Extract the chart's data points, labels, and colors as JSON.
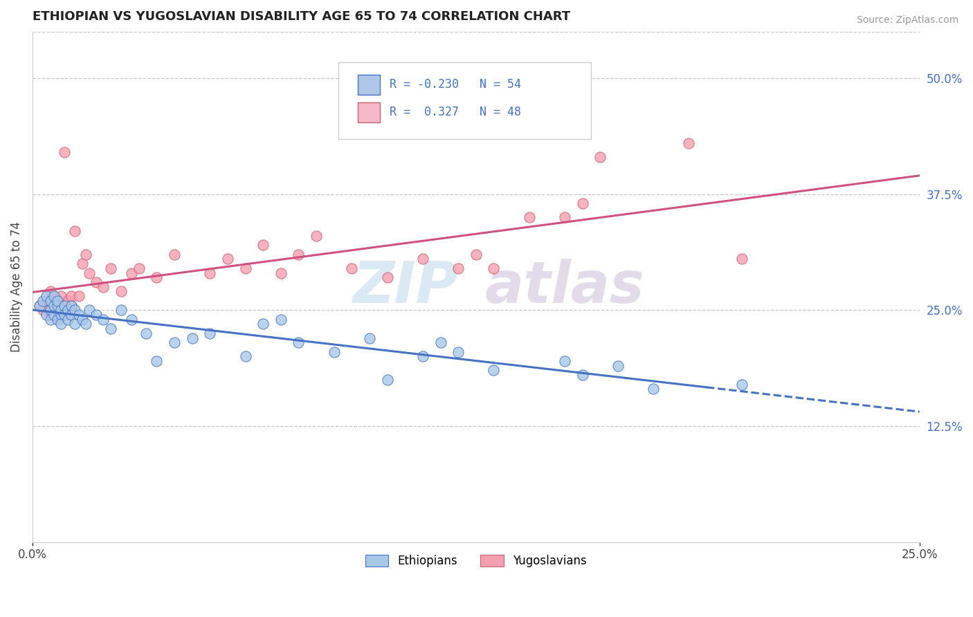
{
  "title": "ETHIOPIAN VS YUGOSLAVIAN DISABILITY AGE 65 TO 74 CORRELATION CHART",
  "source": "Source: ZipAtlas.com",
  "ylabel": "Disability Age 65 to 74",
  "xlim": [
    0.0,
    0.25
  ],
  "ylim": [
    0.0,
    0.55
  ],
  "yticks_right": [
    0.125,
    0.25,
    0.375,
    0.5
  ],
  "yticks_right_labels": [
    "12.5%",
    "25.0%",
    "37.5%",
    "50.0%"
  ],
  "blue_color": "#a8c8e8",
  "pink_color": "#f4a0b0",
  "blue_edge": "#4472c4",
  "pink_edge": "#d06070",
  "trend_blue": "#4472c4",
  "trend_pink": "#d05080",
  "R_blue": -0.23,
  "N_blue": 54,
  "R_pink": 0.327,
  "N_pink": 48,
  "background_color": "#ffffff",
  "grid_color": "#c8c8c8",
  "ethiopians_x": [
    0.002,
    0.003,
    0.004,
    0.004,
    0.005,
    0.005,
    0.005,
    0.006,
    0.006,
    0.006,
    0.007,
    0.007,
    0.007,
    0.008,
    0.008,
    0.008,
    0.009,
    0.009,
    0.01,
    0.01,
    0.011,
    0.011,
    0.012,
    0.012,
    0.013,
    0.014,
    0.015,
    0.016,
    0.018,
    0.02,
    0.022,
    0.025,
    0.028,
    0.032,
    0.035,
    0.04,
    0.045,
    0.05,
    0.06,
    0.065,
    0.07,
    0.075,
    0.085,
    0.095,
    0.1,
    0.11,
    0.115,
    0.12,
    0.13,
    0.15,
    0.155,
    0.165,
    0.175,
    0.2
  ],
  "ethiopians_y": [
    0.255,
    0.26,
    0.245,
    0.265,
    0.25,
    0.24,
    0.26,
    0.245,
    0.255,
    0.265,
    0.24,
    0.255,
    0.26,
    0.245,
    0.25,
    0.235,
    0.255,
    0.245,
    0.25,
    0.24,
    0.255,
    0.245,
    0.235,
    0.25,
    0.245,
    0.24,
    0.235,
    0.25,
    0.245,
    0.24,
    0.23,
    0.25,
    0.24,
    0.225,
    0.195,
    0.215,
    0.22,
    0.225,
    0.2,
    0.235,
    0.24,
    0.215,
    0.205,
    0.22,
    0.175,
    0.2,
    0.215,
    0.205,
    0.185,
    0.195,
    0.18,
    0.19,
    0.165,
    0.17
  ],
  "yugoslavians_x": [
    0.002,
    0.003,
    0.004,
    0.005,
    0.005,
    0.006,
    0.007,
    0.007,
    0.008,
    0.008,
    0.009,
    0.009,
    0.01,
    0.01,
    0.011,
    0.011,
    0.012,
    0.013,
    0.014,
    0.015,
    0.016,
    0.018,
    0.02,
    0.022,
    0.025,
    0.028,
    0.03,
    0.035,
    0.04,
    0.05,
    0.055,
    0.06,
    0.065,
    0.07,
    0.075,
    0.08,
    0.09,
    0.1,
    0.11,
    0.12,
    0.125,
    0.13,
    0.14,
    0.15,
    0.155,
    0.16,
    0.185,
    0.2
  ],
  "yugoslavians_y": [
    0.255,
    0.25,
    0.26,
    0.245,
    0.27,
    0.255,
    0.25,
    0.26,
    0.265,
    0.245,
    0.42,
    0.25,
    0.26,
    0.245,
    0.265,
    0.255,
    0.335,
    0.265,
    0.3,
    0.31,
    0.29,
    0.28,
    0.275,
    0.295,
    0.27,
    0.29,
    0.295,
    0.285,
    0.31,
    0.29,
    0.305,
    0.295,
    0.32,
    0.29,
    0.31,
    0.33,
    0.295,
    0.285,
    0.305,
    0.295,
    0.31,
    0.295,
    0.35,
    0.35,
    0.365,
    0.415,
    0.43,
    0.305
  ],
  "legend_blue_label": "R = -0.230   N = 54",
  "legend_pink_label": "R =  0.327   N = 48"
}
